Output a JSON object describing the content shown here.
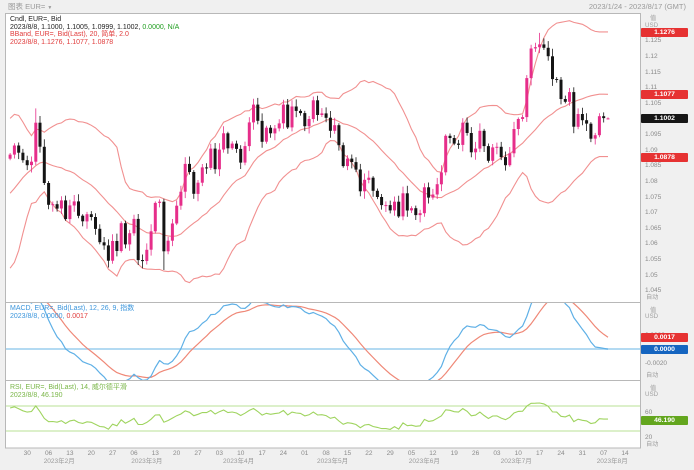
{
  "topbar": {
    "app_label": "图表",
    "symbol": "EUR=",
    "caret": "▼",
    "date_range": "2023/1/24 - 2023/8/17 (GMT)"
  },
  "legends": {
    "main_line1": "Cndl, EUR=, Bid",
    "main_line2_black": "2023/8/8, 1.1000, 1.1005, 1.0999, 1.1002, ",
    "main_line2_green": "0.0000, N/A",
    "main_line3": "BBand, EUR=, Bid(Last), 20, 简单, 2.0",
    "main_line4": "2023/8/8, 1.1276, 1.1077, 1.0878",
    "macd_line1": "MACD, EUR=, Bid(Last), 12, 26, 9, 指数",
    "macd_line2_blue": "2023/8/8, 0.0000, ",
    "macd_line2_red": "0.0017",
    "rsi_line1": "RSI, EUR=, Bid(Last), 14, 威尔德平滑",
    "rsi_line2": "2023/8/8, 46.190"
  },
  "axes": {
    "price_ticks": [
      "1.125",
      "1.12",
      "1.115",
      "1.11",
      "1.105",
      "1.1",
      "1.095",
      "1.09",
      "1.085",
      "1.08",
      "1.075",
      "1.07",
      "1.065",
      "1.06",
      "1.055",
      "1.05",
      "1.045"
    ],
    "macd_ticks": [
      {
        "label": "0.0020",
        "v": 0.002
      },
      {
        "label": "-0.0020",
        "v": -0.002
      }
    ],
    "rsi_ticks": [
      {
        "label": "60",
        "v": 60
      },
      {
        "label": "20",
        "v": 20
      }
    ],
    "axis_type_label": "值",
    "axis_currency_label": "USD",
    "auto_label": "自动",
    "x_day_ticks": [
      {
        "label": "30",
        "i": 4
      },
      {
        "label": "06",
        "i": 9
      },
      {
        "label": "13",
        "i": 14
      },
      {
        "label": "20",
        "i": 19
      },
      {
        "label": "27",
        "i": 24
      },
      {
        "label": "06",
        "i": 29
      },
      {
        "label": "13",
        "i": 34
      },
      {
        "label": "20",
        "i": 39
      },
      {
        "label": "27",
        "i": 44
      },
      {
        "label": "03",
        "i": 49
      },
      {
        "label": "10",
        "i": 54
      },
      {
        "label": "17",
        "i": 59
      },
      {
        "label": "24",
        "i": 64
      },
      {
        "label": "01",
        "i": 69
      },
      {
        "label": "08",
        "i": 74
      },
      {
        "label": "15",
        "i": 79
      },
      {
        "label": "22",
        "i": 84
      },
      {
        "label": "29",
        "i": 89
      },
      {
        "label": "05",
        "i": 94
      },
      {
        "label": "12",
        "i": 99
      },
      {
        "label": "19",
        "i": 104
      },
      {
        "label": "26",
        "i": 109
      },
      {
        "label": "03",
        "i": 114
      },
      {
        "label": "10",
        "i": 119
      },
      {
        "label": "17",
        "i": 124
      },
      {
        "label": "24",
        "i": 129
      },
      {
        "label": "31",
        "i": 134
      },
      {
        "label": "07",
        "i": 139
      },
      {
        "label": "14",
        "i": 144
      }
    ],
    "x_month_labels": [
      {
        "label": "2023年2月",
        "i": 11.5
      },
      {
        "label": "2023年3月",
        "i": 32
      },
      {
        "label": "2023年4月",
        "i": 53.5
      },
      {
        "label": "2023年5月",
        "i": 75.5
      },
      {
        "label": "2023年6月",
        "i": 97
      },
      {
        "label": "2023年7月",
        "i": 118.5
      },
      {
        "label": "2023年8月",
        "i": 141
      }
    ]
  },
  "badges": [
    {
      "name": "bband-upper-badge",
      "label": "1.1276",
      "value": 1.1276,
      "scale": "price",
      "color": "#e63232"
    },
    {
      "name": "bband-middle-badge",
      "label": "1.1077",
      "value": 1.1077,
      "scale": "price",
      "color": "#e63232"
    },
    {
      "name": "last-price-badge",
      "label": "1.1002",
      "value": 1.1002,
      "scale": "price",
      "color": "#161616"
    },
    {
      "name": "bband-lower-badge",
      "label": "1.0878",
      "value": 1.0878,
      "scale": "price",
      "color": "#e63232"
    },
    {
      "name": "macd-signal-badge",
      "label": "0.0017",
      "value": 0.0017,
      "scale": "macd",
      "color": "#e63232"
    },
    {
      "name": "macd-line-badge",
      "label": "0.0000",
      "value": 0.0,
      "scale": "macd",
      "color": "#1565c0"
    },
    {
      "name": "rsi-value-badge",
      "label": "46.190",
      "value": 46.19,
      "scale": "rsi",
      "color": "#63a61e"
    }
  ],
  "colors": {
    "up_candle": "#e62e8a",
    "down_candle": "#141414",
    "bband_line": "#f19090",
    "macd_line": "#5fb0e6",
    "macd_signal": "#ef8877",
    "macd_zero_line": "#a8d4f0",
    "rsi_line": "#9fd45f",
    "rsi_band_line": "#b9e096",
    "panel_border": "#b8b8b8",
    "panel_bg": "#ffffff",
    "gutter_bg": "#f0f0f0"
  },
  "chart_data": {
    "type": "candlestick",
    "symbol": "EUR=",
    "price_field": "Bid",
    "date_range": "2023/1/24 - 2023/8/17 (GMT)",
    "last_candle": {
      "date": "2023/8/8",
      "open": 1.1,
      "high": 1.1005,
      "low": 1.0999,
      "close": 1.1002,
      "net_change": "0.0000",
      "pct_change": "N/A"
    },
    "bollinger": {
      "period": 20,
      "ma_type": "简单",
      "width": 2.0,
      "upper": 1.1276,
      "middle": 1.1077,
      "lower": 1.0878
    },
    "macd": {
      "fast": 12,
      "slow": 26,
      "signal_period": 9,
      "ma_type": "指数",
      "macd_value": 0.0,
      "signal_value": 0.0017,
      "visible_ticks": [
        0.002,
        -0.002
      ]
    },
    "rsi": {
      "period": 14,
      "smoothing": "威尔德平滑",
      "value": 46.19,
      "upper_band": 70,
      "lower_band": 30,
      "visible_ticks": [
        60,
        20
      ]
    },
    "price_axis": {
      "ticks": [
        1.125,
        1.12,
        1.115,
        1.11,
        1.105,
        1.1,
        1.095,
        1.09,
        1.085,
        1.08,
        1.075,
        1.07,
        1.065,
        1.06,
        1.055,
        1.05,
        1.045
      ],
      "approx_range": [
        1.042,
        1.133
      ]
    },
    "pre_closes": [
      1.034,
      1.0466,
      1.0497,
      1.0507,
      1.0553,
      1.0549,
      1.0555,
      1.0628,
      1.0633,
      1.0684,
      1.0632,
      1.0606,
      1.059,
      1.0636,
      1.061,
      1.0663,
      1.07,
      1.0667,
      1.0549,
      1.0546,
      1.0603,
      1.0544,
      1.0522,
      1.057,
      1.0633,
      1.0739,
      1.0731,
      1.0737,
      1.0853,
      1.0827,
      1.0798,
      1.0794,
      1.0829,
      1.08,
      1.0856,
      1.0918,
      1.0869,
      1.0855,
      1.0873
    ],
    "closes": [
      1.0886,
      1.0915,
      1.0892,
      1.0868,
      1.0852,
      1.0863,
      1.0988,
      1.0911,
      1.0795,
      1.0725,
      1.0727,
      1.0713,
      1.0739,
      1.0679,
      1.0723,
      1.0736,
      1.069,
      1.0672,
      1.0695,
      1.0686,
      1.0648,
      1.0605,
      1.0595,
      1.0546,
      1.0609,
      1.0577,
      1.0666,
      1.0598,
      1.0634,
      1.068,
      1.0548,
      1.0545,
      1.0581,
      1.064,
      1.0731,
      1.0735,
      1.0576,
      1.061,
      1.0665,
      1.0722,
      1.0767,
      1.0856,
      1.083,
      1.076,
      1.0796,
      1.0845,
      1.0843,
      1.0905,
      1.0839,
      1.0902,
      1.0954,
      1.0906,
      1.0921,
      1.0904,
      1.086,
      1.0913,
      1.0989,
      1.1046,
      1.0994,
      1.0927,
      1.0972,
      1.0954,
      1.097,
      1.0986,
      1.1046,
      1.0973,
      1.104,
      1.1026,
      1.1019,
      1.0977,
      1.1,
      1.106,
      1.1013,
      1.1018,
      1.1004,
      1.0962,
      1.098,
      1.0916,
      1.0849,
      1.0873,
      1.0862,
      1.0838,
      1.0768,
      1.0805,
      1.0812,
      1.077,
      1.075,
      1.0724,
      1.0724,
      1.0707,
      1.0735,
      1.0688,
      1.0762,
      1.0707,
      1.0714,
      1.0692,
      1.0698,
      1.0781,
      1.0748,
      1.0758,
      1.0791,
      1.0829,
      1.0946,
      1.0939,
      1.0921,
      1.0917,
      1.0988,
      1.0955,
      1.0893,
      1.0905,
      1.0962,
      1.0913,
      1.0866,
      1.0909,
      1.0911,
      1.0878,
      1.0852,
      1.089,
      1.0968,
      1.1,
      1.1006,
      1.1131,
      1.1226,
      1.123,
      1.1239,
      1.1228,
      1.1201,
      1.1128,
      1.1126,
      1.1064,
      1.1055,
      1.1086,
      1.0975,
      1.1016,
      1.0996,
      1.0985,
      1.0937,
      1.0948,
      1.1009,
      1.1003,
      1.1002
    ],
    "wick_overrides": {
      "6": {
        "hi": 1.1034
      },
      "36": {
        "lo": 1.0516
      },
      "124": {
        "hi": 1.1276
      }
    },
    "future_slots": 7
  }
}
